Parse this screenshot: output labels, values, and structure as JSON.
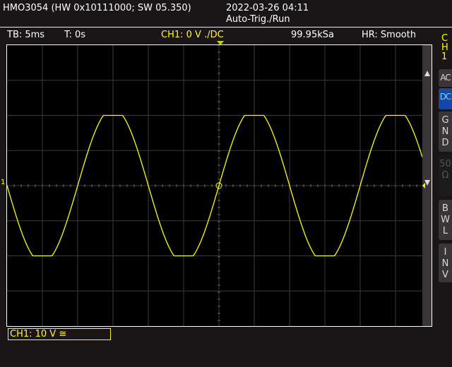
{
  "header": {
    "title": "HMO3054 (HW 0x10111000; SW 05.350)",
    "datetime": "2022-03-26 04:11",
    "trigger_status": "Auto-Trig./Run"
  },
  "info_bar": {
    "timebase": "TB: 5ms",
    "trigger_time": "T: 0s",
    "trigger_info": "CH1: 0 V ./DC",
    "sample_rate": "99.95kSa",
    "hi_res": "HR: Smooth"
  },
  "channel_panel": {
    "label": [
      "C",
      "H",
      "1"
    ],
    "buttons": [
      {
        "id": "ac",
        "label": [
          "AC"
        ],
        "active": false,
        "enabled": true
      },
      {
        "id": "dc",
        "label": [
          "DC"
        ],
        "active": true,
        "enabled": true
      },
      {
        "id": "gnd",
        "label": [
          "G",
          "N",
          "D"
        ],
        "active": false,
        "enabled": true
      },
      {
        "id": "50ohm",
        "label": [
          "50",
          "Ω"
        ],
        "active": false,
        "enabled": false
      },
      {
        "id": "bwl",
        "label": [
          "B",
          "W",
          "L"
        ],
        "active": false,
        "enabled": true
      },
      {
        "id": "inv",
        "label": [
          "I",
          "N",
          "V"
        ],
        "active": false,
        "enabled": true
      }
    ]
  },
  "channel_status": "CH1: 10 V ≅",
  "ground_marker": "1",
  "colors": {
    "ch1": "#ffff00",
    "active_button": "#1546a8",
    "grid": "#3a3a3a"
  },
  "waveform": {
    "channel": "CH1",
    "volts_per_div": 10,
    "ms_per_div": 5,
    "h_divisions": 12,
    "v_divisions": 8,
    "frequency_hz": 50,
    "sine_amplitude_v": 22,
    "clip_level_v": 20,
    "trigger_edge": "rising",
    "trigger_level_v": 0
  }
}
